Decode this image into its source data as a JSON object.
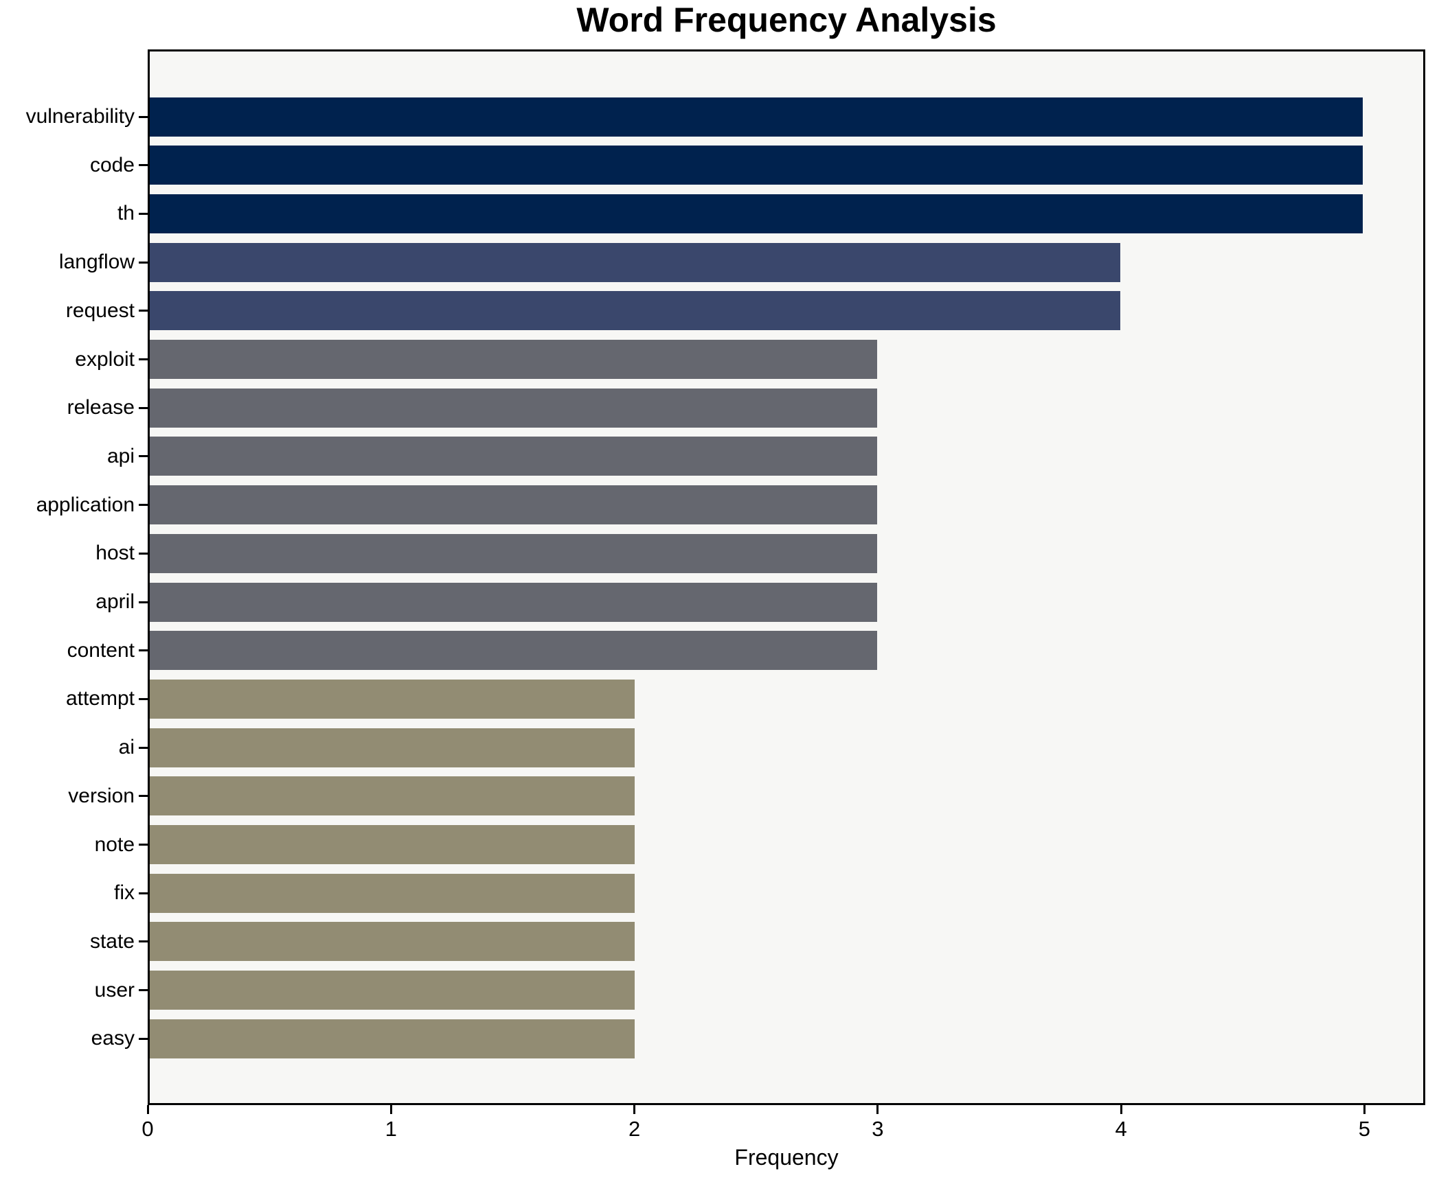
{
  "chart_data": {
    "type": "bar",
    "orientation": "horizontal",
    "title": "Word Frequency Analysis",
    "xlabel": "Frequency",
    "ylabel": "",
    "categories": [
      "vulnerability",
      "code",
      "th",
      "langflow",
      "request",
      "exploit",
      "release",
      "api",
      "application",
      "host",
      "april",
      "content",
      "attempt",
      "ai",
      "version",
      "note",
      "fix",
      "state",
      "user",
      "easy"
    ],
    "values": [
      5,
      5,
      5,
      4,
      4,
      3,
      3,
      3,
      3,
      3,
      3,
      3,
      2,
      2,
      2,
      2,
      2,
      2,
      2,
      2
    ],
    "xlim": [
      0,
      5.25
    ],
    "x_ticks": [
      "0",
      "1",
      "2",
      "3",
      "4",
      "5"
    ],
    "grid": false,
    "legend": "none",
    "colors": {
      "value_5": "#00224e",
      "value_4": "#3a476c",
      "value_3": "#65676f",
      "value_2": "#928c73"
    },
    "plot_background": "#f7f7f5",
    "figure_background": "#ffffff",
    "spine_color": "#000000"
  }
}
